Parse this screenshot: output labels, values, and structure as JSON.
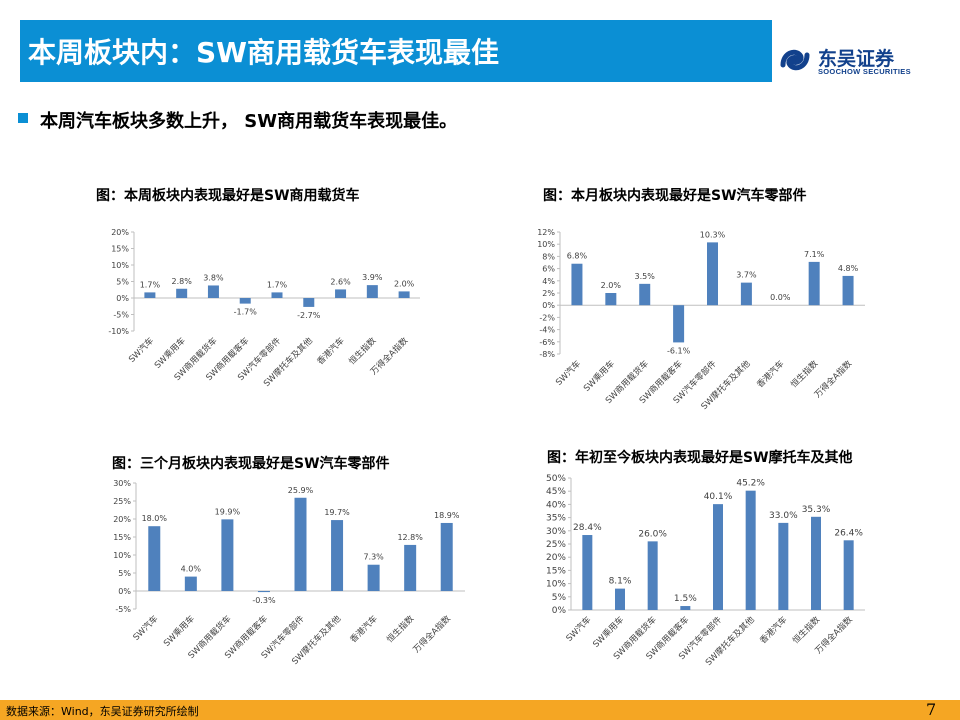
{
  "header": {
    "title": "本周板块内：SW商用载货车表现最佳"
  },
  "logo": {
    "name_cn": "东吴证券",
    "name_en": "SOOCHOW SECURITIES"
  },
  "bullet": {
    "text": "本周汽车板块多数上升， SW商用载货车表现最佳。"
  },
  "colors": {
    "bar": "#4f81bd",
    "title_bar": "#0b8fd4",
    "footer": "#f5a623",
    "brand": "#12418c"
  },
  "chart_data": [
    {
      "type": "bar",
      "title": "图：本周板块内表现最好是SW商用载货车",
      "categories": [
        "SW汽车",
        "SW乘用车",
        "SW商用载货车",
        "SW商用载客车",
        "SW汽车零部件",
        "SW摩托车及其他",
        "香港汽车",
        "恒生指数",
        "万得全A指数"
      ],
      "values": [
        1.7,
        2.8,
        3.8,
        -1.7,
        1.7,
        -2.7,
        2.6,
        3.9,
        2.0
      ],
      "value_labels": [
        "1.7%",
        "2.8%",
        "3.8%",
        "-1.7%",
        "1.7%",
        "-2.7%",
        "2.6%",
        "3.9%",
        "2.0%"
      ],
      "yticks": [
        20,
        15,
        10,
        5,
        0,
        -5,
        -10
      ],
      "ytick_labels": [
        "20%",
        "15%",
        "10%",
        "5%",
        "0%",
        "-5%",
        "-10%"
      ],
      "ylim": [
        -10,
        20
      ]
    },
    {
      "type": "bar",
      "title": "图：本月板块内表现最好是SW汽车零部件",
      "categories": [
        "SW汽车",
        "SW乘用车",
        "SW商用载货车",
        "SW商用载客车",
        "SW汽车零部件",
        "SW摩托车及其他",
        "香港汽车",
        "恒生指数",
        "万得全A指数"
      ],
      "values": [
        6.8,
        2.0,
        3.5,
        -6.1,
        10.3,
        3.7,
        0.0,
        7.1,
        4.8
      ],
      "value_labels": [
        "6.8%",
        "2.0%",
        "3.5%",
        "-6.1%",
        "10.3%",
        "3.7%",
        "0.0%",
        "7.1%",
        "4.8%"
      ],
      "yticks": [
        12,
        10,
        8,
        6,
        4,
        2,
        0,
        -2,
        -4,
        -6,
        -8
      ],
      "ytick_labels": [
        "12%",
        "10%",
        "8%",
        "6%",
        "4%",
        "2%",
        "0%",
        "-2%",
        "-4%",
        "-6%",
        "-8%"
      ],
      "ylim": [
        -8,
        12
      ]
    },
    {
      "type": "bar",
      "title": "图：三个月板块内表现最好是SW汽车零部件",
      "categories": [
        "SW汽车",
        "SW乘用车",
        "SW商用载货车",
        "SW商用载客车",
        "SW汽车零部件",
        "SW摩托车及其他",
        "香港汽车",
        "恒生指数",
        "万得全A指数"
      ],
      "values": [
        18.0,
        4.0,
        19.9,
        -0.3,
        25.9,
        19.7,
        7.3,
        12.8,
        18.9
      ],
      "value_labels": [
        "18.0%",
        "4.0%",
        "19.9%",
        "-0.3%",
        "25.9%",
        "19.7%",
        "7.3%",
        "12.8%",
        "18.9%"
      ],
      "yticks": [
        30,
        25,
        20,
        15,
        10,
        5,
        0,
        -5
      ],
      "ytick_labels": [
        "30%",
        "25%",
        "20%",
        "15%",
        "10%",
        "5%",
        "0%",
        "-5%"
      ],
      "ylim": [
        -5,
        30
      ]
    },
    {
      "type": "bar",
      "title": "图：年初至今板块内表现最好是SW摩托车及其他",
      "categories": [
        "SW汽车",
        "SW乘用车",
        "SW商用载货车",
        "SW商用载客车",
        "SW汽车零部件",
        "SW摩托车及其他",
        "香港汽车",
        "恒生指数",
        "万得全A指数"
      ],
      "values": [
        28.4,
        8.1,
        26.0,
        1.5,
        40.1,
        45.2,
        33.0,
        35.3,
        26.4
      ],
      "value_labels": [
        "28.4%",
        "8.1%",
        "26.0%",
        "1.5%",
        "40.1%",
        "45.2%",
        "33.0%",
        "35.3%",
        "26.4%"
      ],
      "yticks": [
        50,
        45,
        40,
        35,
        30,
        25,
        20,
        15,
        10,
        5,
        0
      ],
      "ytick_labels": [
        "50%",
        "45%",
        "40%",
        "35%",
        "30%",
        "25%",
        "20%",
        "15%",
        "10%",
        "5%",
        "0%"
      ],
      "ylim": [
        0,
        50
      ]
    }
  ],
  "footer": {
    "source": "数据来源：Wind，东吴证券研究所绘制",
    "page_number": "7"
  }
}
